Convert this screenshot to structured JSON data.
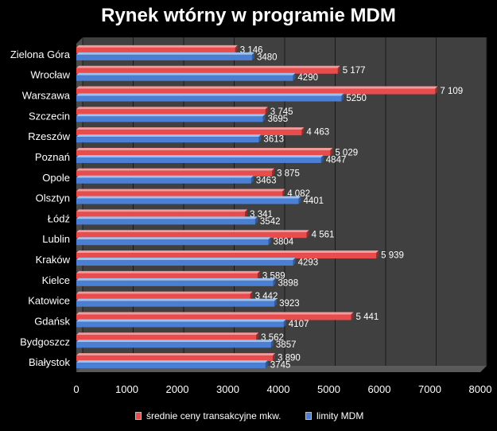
{
  "chart_data": {
    "type": "bar",
    "orientation": "horizontal",
    "title": "Rynek wtórny w programie MDM",
    "categories": [
      "Zielona Góra",
      "Wrocław",
      "Warszawa",
      "Szczecin",
      "Rzeszów",
      "Poznań",
      "Opole",
      "Olsztyn",
      "Łódź",
      "Lublin",
      "Kraków",
      "Kielce",
      "Katowice",
      "Gdańsk",
      "Bydgoszcz",
      "Białystok"
    ],
    "series": [
      {
        "name": "średnie ceny transakcyjne mkw.",
        "color": "#e84c4c",
        "values": [
          3146,
          5177,
          7109,
          3745,
          4463,
          5029,
          3875,
          4082,
          3341,
          4561,
          5939,
          3589,
          3442,
          5441,
          3562,
          3890
        ],
        "labels": [
          "3 146",
          "5 177",
          "7 109",
          "3 745",
          "4 463",
          "5 029",
          "3 875",
          "4 082",
          "3 341",
          "4 561",
          "5 939",
          "3 589",
          "3 442",
          "5 441",
          "3 562",
          "3 890"
        ]
      },
      {
        "name": "limity MDM",
        "color": "#4a7fd4",
        "values": [
          3480,
          4290,
          5250,
          3695,
          3613,
          4847,
          3463,
          4401,
          3542,
          3804,
          4293,
          3898,
          3923,
          4107,
          3857,
          3745
        ],
        "labels": [
          "3480",
          "4290",
          "5250",
          "3695",
          "3613",
          "4847",
          "3463",
          "4401",
          "3542",
          "3804",
          "4293",
          "3898",
          "3923",
          "4107",
          "3857",
          "3745"
        ]
      }
    ],
    "xlim": [
      0,
      8000
    ],
    "xticks": [
      "0",
      "1000",
      "2000",
      "3000",
      "4000",
      "5000",
      "6000",
      "7000",
      "8000"
    ],
    "grid": true,
    "legend_position": "bottom",
    "background_color": "#000000",
    "plot_color": "#404040"
  }
}
